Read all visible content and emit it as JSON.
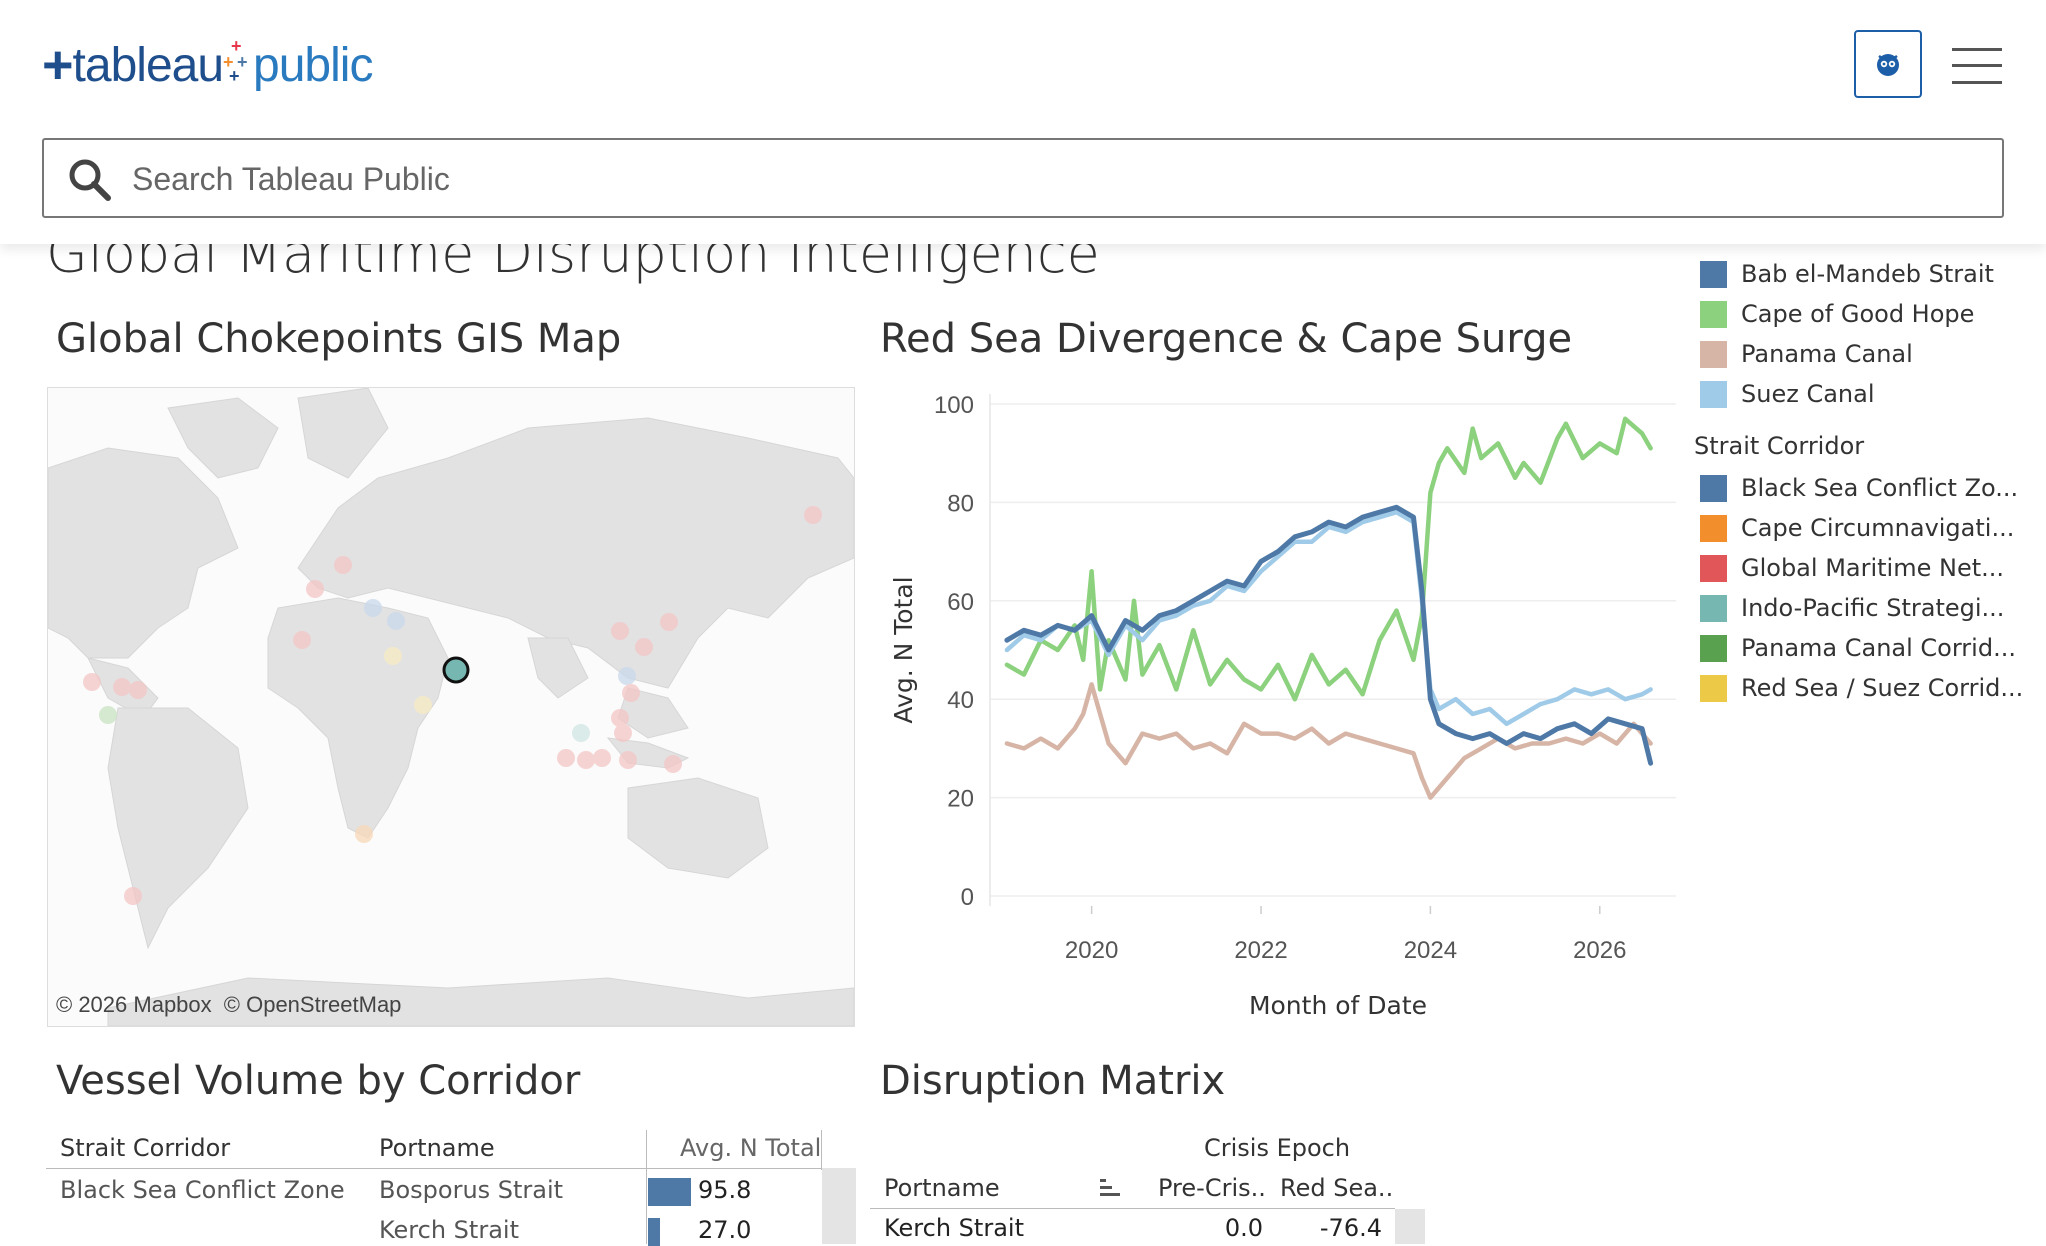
{
  "header": {
    "logo": {
      "tableau": "tableau",
      "public": "public"
    },
    "search_placeholder": "Search Tableau Public",
    "icons": {
      "search": "search-icon",
      "user": "user-icon",
      "menu": "menu-icon"
    }
  },
  "dashboard": {
    "title": "Global Maritime Disruption Intelligence",
    "map": {
      "title": "Global Chokepoints GIS Map",
      "attribution_mapbox": "© 2026 Mapbox",
      "attribution_osm": "© OpenStreetMap"
    },
    "line_chart_title": "Red Sea Divergence & Cape Surge",
    "legend": {
      "portname_items": [
        {
          "label": "Bab el-Mandeb Strait",
          "color": "#4e79a7"
        },
        {
          "label": "Cape of Good Hope",
          "color": "#8cd17d"
        },
        {
          "label": "Panama Canal",
          "color": "#d7b5a6"
        },
        {
          "label": "Suez Canal",
          "color": "#a0cbe8"
        }
      ],
      "corridor_title": "Strait Corridor",
      "corridor_items": [
        {
          "label": "Black Sea Conflict Zo...",
          "color": "#4e79a7"
        },
        {
          "label": "Cape Circumnavigati...",
          "color": "#f28e2b"
        },
        {
          "label": "Global Maritime Net...",
          "color": "#e15759"
        },
        {
          "label": "Indo-Pacific Strategi...",
          "color": "#76b7b2"
        },
        {
          "label": "Panama Canal Corrid...",
          "color": "#59a14f"
        },
        {
          "label": "Red Sea / Suez Corrid...",
          "color": "#edc948"
        }
      ]
    },
    "vessel_table": {
      "title": "Vessel Volume by Corridor",
      "col_corridor": "Strait Corridor",
      "col_port": "Portname",
      "col_value": "Avg. N Total",
      "rows": [
        {
          "corridor": "Black Sea Conflict Zone",
          "port": "Bosporus Strait",
          "value": 95.8,
          "value_label": "95.8"
        },
        {
          "corridor": "",
          "port": "Kerch Strait",
          "value": 27.0,
          "value_label": "27.0"
        }
      ]
    },
    "matrix": {
      "title": "Disruption Matrix",
      "group_header": "Crisis Epoch",
      "col_port": "Portname",
      "col_pre": "Pre-Cris..",
      "col_red": "Red Sea..",
      "rows": [
        {
          "port": "Kerch Strait",
          "pre": "0.0",
          "red": "-76.4"
        }
      ]
    }
  },
  "chart_data": {
    "type": "line",
    "title": "Red Sea Divergence & Cape Surge",
    "xlabel": "Month of Date",
    "ylabel": "Avg. N Total",
    "xlim": [
      2018.8,
      2026.9
    ],
    "ylim": [
      0,
      100
    ],
    "x_ticks": [
      2020,
      2022,
      2024,
      2026
    ],
    "y_ticks": [
      0,
      20,
      40,
      60,
      80,
      100
    ],
    "grid": true,
    "legend": "right",
    "series": [
      {
        "name": "Panama Canal",
        "color": "#d7b5a6",
        "x": [
          2019.0,
          2019.2,
          2019.4,
          2019.6,
          2019.8,
          2019.9,
          2020.0,
          2020.2,
          2020.4,
          2020.6,
          2020.8,
          2021.0,
          2021.2,
          2021.4,
          2021.6,
          2021.8,
          2022.0,
          2022.2,
          2022.4,
          2022.6,
          2022.8,
          2023.0,
          2023.2,
          2023.4,
          2023.6,
          2023.8,
          2023.9,
          2024.0,
          2024.2,
          2024.4,
          2024.6,
          2024.8,
          2025.0,
          2025.2,
          2025.4,
          2025.6,
          2025.8,
          2026.0,
          2026.2,
          2026.4,
          2026.6
        ],
        "y": [
          31,
          30,
          32,
          30,
          34,
          37,
          43,
          31,
          27,
          33,
          32,
          33,
          30,
          31,
          29,
          35,
          33,
          33,
          32,
          34,
          31,
          33,
          32,
          31,
          30,
          29,
          24,
          20,
          24,
          28,
          30,
          32,
          30,
          31,
          31,
          32,
          31,
          33,
          31,
          35,
          31
        ]
      },
      {
        "name": "Cape of Good Hope",
        "color": "#8cd17d",
        "x": [
          2019.0,
          2019.2,
          2019.4,
          2019.6,
          2019.8,
          2019.9,
          2020.0,
          2020.1,
          2020.2,
          2020.4,
          2020.5,
          2020.6,
          2020.8,
          2021.0,
          2021.2,
          2021.4,
          2021.6,
          2021.8,
          2022.0,
          2022.2,
          2022.4,
          2022.6,
          2022.8,
          2023.0,
          2023.2,
          2023.4,
          2023.6,
          2023.7,
          2023.8,
          2023.9,
          2024.0,
          2024.1,
          2024.2,
          2024.4,
          2024.5,
          2024.6,
          2024.8,
          2025.0,
          2025.1,
          2025.3,
          2025.5,
          2025.6,
          2025.8,
          2026.0,
          2026.2,
          2026.3,
          2026.5,
          2026.6
        ],
        "y": [
          47,
          45,
          52,
          50,
          55,
          48,
          66,
          42,
          52,
          44,
          60,
          45,
          51,
          42,
          54,
          43,
          48,
          44,
          42,
          47,
          40,
          49,
          43,
          46,
          41,
          52,
          58,
          53,
          48,
          57,
          82,
          88,
          91,
          86,
          95,
          89,
          92,
          85,
          88,
          84,
          93,
          96,
          89,
          92,
          90,
          97,
          94,
          91
        ]
      },
      {
        "name": "Suez Canal",
        "color": "#a0cbe8",
        "x": [
          2019.0,
          2019.2,
          2019.4,
          2019.6,
          2019.8,
          2020.0,
          2020.2,
          2020.4,
          2020.6,
          2020.8,
          2021.0,
          2021.2,
          2021.4,
          2021.6,
          2021.8,
          2022.0,
          2022.2,
          2022.4,
          2022.6,
          2022.8,
          2023.0,
          2023.2,
          2023.4,
          2023.6,
          2023.8,
          2023.9,
          2024.0,
          2024.1,
          2024.3,
          2024.5,
          2024.7,
          2024.9,
          2025.1,
          2025.3,
          2025.5,
          2025.7,
          2025.9,
          2026.1,
          2026.3,
          2026.5,
          2026.6
        ],
        "y": [
          50,
          53,
          52,
          55,
          54,
          56,
          49,
          55,
          52,
          56,
          57,
          59,
          60,
          63,
          62,
          66,
          69,
          72,
          72,
          75,
          74,
          76,
          77,
          78,
          76,
          60,
          42,
          38,
          40,
          37,
          38,
          35,
          37,
          39,
          40,
          42,
          41,
          42,
          40,
          41,
          42
        ]
      },
      {
        "name": "Bab el-Mandeb Strait",
        "color": "#4e79a7",
        "x": [
          2019.0,
          2019.2,
          2019.4,
          2019.6,
          2019.8,
          2020.0,
          2020.2,
          2020.4,
          2020.6,
          2020.8,
          2021.0,
          2021.2,
          2021.4,
          2021.6,
          2021.8,
          2022.0,
          2022.2,
          2022.4,
          2022.6,
          2022.8,
          2023.0,
          2023.2,
          2023.4,
          2023.6,
          2023.8,
          2023.9,
          2024.0,
          2024.1,
          2024.3,
          2024.5,
          2024.7,
          2024.9,
          2025.1,
          2025.3,
          2025.5,
          2025.7,
          2025.9,
          2026.1,
          2026.3,
          2026.5,
          2026.6
        ],
        "y": [
          52,
          54,
          53,
          55,
          54,
          57,
          50,
          56,
          54,
          57,
          58,
          60,
          62,
          64,
          63,
          68,
          70,
          73,
          74,
          76,
          75,
          77,
          78,
          79,
          77,
          62,
          40,
          35,
          33,
          32,
          33,
          31,
          33,
          32,
          34,
          35,
          33,
          36,
          35,
          34,
          27
        ]
      }
    ]
  }
}
